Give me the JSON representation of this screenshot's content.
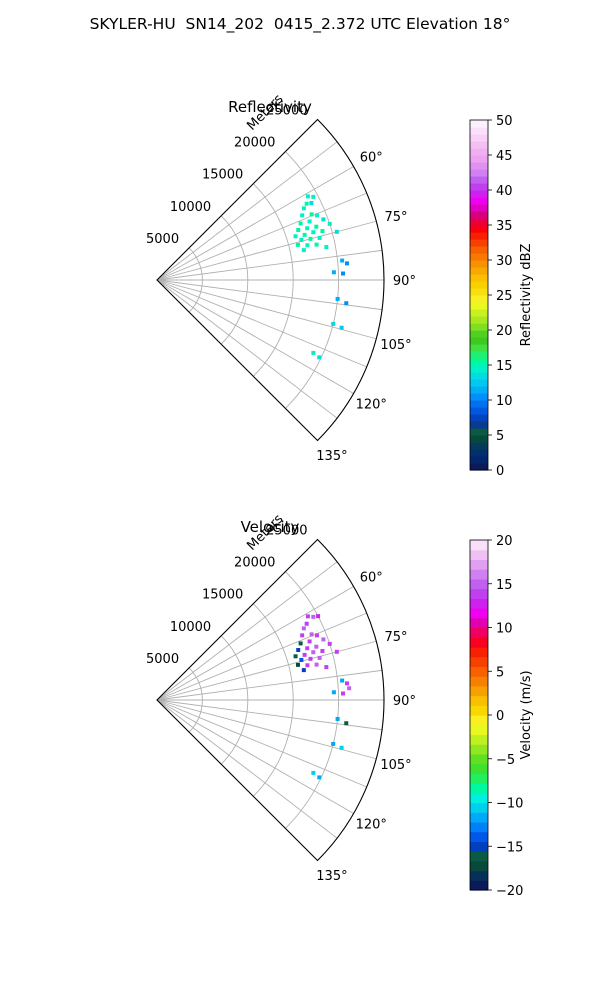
{
  "figure_title": "SKYLER-HU  SN14_202  0415_2.372 UTC Elevation 18°",
  "colors": {
    "grid": "#b0b0b0",
    "frame": "#000000",
    "reflectivity_points": "#00e8b0",
    "cyan_points": "#00d8f0",
    "magenta_points": "#c040f0",
    "blue_points": "#0050e0"
  },
  "chart_data": [
    {
      "type": "scatter",
      "title": "Reflectivity",
      "range_label": "Meters",
      "range_ticks": [
        5000,
        10000,
        15000,
        20000,
        25000
      ],
      "range_lim": [
        0,
        25000
      ],
      "azimuth_lim": [
        45,
        135
      ],
      "azimuth_ticks": [
        60,
        75,
        90,
        105,
        120,
        135
      ],
      "azimuth_tick_labels": [
        "60°",
        "75°",
        "90°",
        "105°",
        "120°",
        "135°"
      ],
      "colorbar": {
        "label": "Reflectivity dBZ",
        "min": 0,
        "max": 50,
        "ticks": [
          0,
          5,
          10,
          15,
          20,
          25,
          30,
          35,
          40,
          45,
          50
        ],
        "tick_labels": [
          "0",
          "5",
          "10",
          "15",
          "20",
          "25",
          "30",
          "35",
          "40",
          "45",
          "50"
        ],
        "colors": [
          "#0a1a5a",
          "#04246c",
          "#02306e",
          "#043a5a",
          "#064a3c",
          "#0a5a44",
          "#0a3a90",
          "#0044c0",
          "#0058e0",
          "#0070f0",
          "#0090f8",
          "#00aef8",
          "#00c8f0",
          "#00dce0",
          "#00f0c8",
          "#00f8a0",
          "#20f070",
          "#40e040",
          "#40c820",
          "#50d020",
          "#80e020",
          "#a8e820",
          "#c8f020",
          "#e8f820",
          "#f8f020",
          "#f8e010",
          "#f8d000",
          "#f8c000",
          "#f8a800",
          "#f89000",
          "#f87800",
          "#f86000",
          "#f84000",
          "#f82000",
          "#f80010",
          "#e80040",
          "#d80080",
          "#e000c0",
          "#f000f0",
          "#d020f0",
          "#c040f0",
          "#c060f0",
          "#d080f0",
          "#e090f0",
          "#f0a0f0",
          "#f0b0f0",
          "#f4c0f4",
          "#f8d0f8",
          "#fbe0fb",
          "#fdf0fd"
        ]
      },
      "points": [
        {
          "r": 19000,
          "az": 61,
          "v": 14
        },
        {
          "r": 19500,
          "az": 62,
          "v": 14
        },
        {
          "r": 18500,
          "az": 63,
          "v": 15
        },
        {
          "r": 18000,
          "az": 64,
          "v": 14
        },
        {
          "r": 19000,
          "az": 63.5,
          "v": 13
        },
        {
          "r": 17500,
          "az": 66,
          "v": 14
        },
        {
          "r": 18500,
          "az": 67,
          "v": 15
        },
        {
          "r": 19000,
          "az": 68,
          "v": 14
        },
        {
          "r": 17000,
          "az": 68.5,
          "v": 15
        },
        {
          "r": 18000,
          "az": 69,
          "v": 14
        },
        {
          "r": 19500,
          "az": 70,
          "v": 13
        },
        {
          "r": 16500,
          "az": 70.5,
          "v": 15
        },
        {
          "r": 17500,
          "az": 71,
          "v": 14
        },
        {
          "r": 18500,
          "az": 71.5,
          "v": 15
        },
        {
          "r": 20000,
          "az": 72,
          "v": 14
        },
        {
          "r": 16000,
          "az": 72.5,
          "v": 14
        },
        {
          "r": 17000,
          "az": 73,
          "v": 15
        },
        {
          "r": 18000,
          "az": 73,
          "v": 14
        },
        {
          "r": 19000,
          "az": 73.5,
          "v": 15
        },
        {
          "r": 16500,
          "az": 74.5,
          "v": 14
        },
        {
          "r": 17500,
          "az": 75,
          "v": 15
        },
        {
          "r": 18500,
          "az": 75.5,
          "v": 14
        },
        {
          "r": 20500,
          "az": 75,
          "v": 13
        },
        {
          "r": 16000,
          "az": 76,
          "v": 15
        },
        {
          "r": 17000,
          "az": 77,
          "v": 14
        },
        {
          "r": 18000,
          "az": 77.5,
          "v": 15
        },
        {
          "r": 16500,
          "az": 78.5,
          "v": 14
        },
        {
          "r": 19000,
          "az": 79,
          "v": 14
        },
        {
          "r": 20500,
          "az": 84,
          "v": 11
        },
        {
          "r": 21000,
          "az": 85,
          "v": 10
        },
        {
          "r": 19500,
          "az": 87.5,
          "v": 11
        },
        {
          "r": 20500,
          "az": 88,
          "v": 10
        },
        {
          "r": 20000,
          "az": 96,
          "v": 11
        },
        {
          "r": 21000,
          "az": 97,
          "v": 10
        },
        {
          "r": 20000,
          "az": 104,
          "v": 13
        },
        {
          "r": 21000,
          "az": 104.5,
          "v": 12
        },
        {
          "r": 19000,
          "az": 115,
          "v": 14
        },
        {
          "r": 19800,
          "az": 115.5,
          "v": 13
        }
      ]
    },
    {
      "type": "scatter",
      "title": "Velocity",
      "range_label": "Meters",
      "range_ticks": [
        5000,
        10000,
        15000,
        20000,
        25000
      ],
      "range_lim": [
        0,
        25000
      ],
      "azimuth_lim": [
        45,
        135
      ],
      "azimuth_ticks": [
        60,
        75,
        90,
        105,
        120,
        135
      ],
      "azimuth_tick_labels": [
        "60°",
        "75°",
        "90°",
        "105°",
        "120°",
        "135°"
      ],
      "colorbar": {
        "label": "Velocity (m/s)",
        "min": -20,
        "max": 20,
        "ticks": [
          -20,
          -15,
          -10,
          -5,
          0,
          5,
          10,
          15,
          20
        ],
        "tick_labels": [
          "−20",
          "−15",
          "−10",
          "−5",
          "0",
          "5",
          "10",
          "15",
          "20"
        ],
        "colors": [
          "#0a1a5a",
          "#06305a",
          "#064a3c",
          "#0a5a44",
          "#0040c0",
          "#0058e8",
          "#0080f8",
          "#00a8f8",
          "#00d0f0",
          "#00f0e0",
          "#00f8a0",
          "#20f060",
          "#40e030",
          "#60e020",
          "#90e820",
          "#c0f020",
          "#e8f820",
          "#f8f020",
          "#f8d800",
          "#f8c000",
          "#f8a000",
          "#f88000",
          "#f86000",
          "#f84000",
          "#f82000",
          "#f80020",
          "#f00060",
          "#e000b0",
          "#f000f0",
          "#d020f0",
          "#c040f0",
          "#c060f0",
          "#d080f0",
          "#e0a0f0",
          "#f0c0f4",
          "#f8e0f8"
        ]
      },
      "points": [
        {
          "r": 19000,
          "az": 61,
          "v": 14
        },
        {
          "r": 19500,
          "az": 62,
          "v": 15
        },
        {
          "r": 18500,
          "az": 63,
          "v": 14
        },
        {
          "r": 20000,
          "az": 62.5,
          "v": 13
        },
        {
          "r": 18000,
          "az": 64,
          "v": 15
        },
        {
          "r": 17500,
          "az": 66,
          "v": 14
        },
        {
          "r": 18500,
          "az": 67,
          "v": 15
        },
        {
          "r": 19000,
          "az": 68,
          "v": 14
        },
        {
          "r": 17000,
          "az": 68.5,
          "v": -16
        },
        {
          "r": 18000,
          "az": 69,
          "v": 14
        },
        {
          "r": 19500,
          "az": 70,
          "v": 15
        },
        {
          "r": 16500,
          "az": 70.5,
          "v": -15
        },
        {
          "r": 17500,
          "az": 71,
          "v": 14
        },
        {
          "r": 18500,
          "az": 71.5,
          "v": 15
        },
        {
          "r": 20000,
          "az": 72,
          "v": 14
        },
        {
          "r": 16000,
          "az": 72.5,
          "v": -16
        },
        {
          "r": 17000,
          "az": 73,
          "v": 14
        },
        {
          "r": 18000,
          "az": 73,
          "v": 15
        },
        {
          "r": 19000,
          "az": 73.5,
          "v": 14
        },
        {
          "r": 16500,
          "az": 74.5,
          "v": -14
        },
        {
          "r": 17500,
          "az": 75,
          "v": 14
        },
        {
          "r": 18500,
          "az": 75.5,
          "v": 15
        },
        {
          "r": 20500,
          "az": 75,
          "v": 14
        },
        {
          "r": 16000,
          "az": 76,
          "v": -17
        },
        {
          "r": 17000,
          "az": 77,
          "v": 14
        },
        {
          "r": 18000,
          "az": 77.5,
          "v": 15
        },
        {
          "r": 16500,
          "az": 78.5,
          "v": -15
        },
        {
          "r": 19000,
          "az": 79,
          "v": 14
        },
        {
          "r": 20500,
          "az": 84,
          "v": -12
        },
        {
          "r": 21000,
          "az": 85,
          "v": 14
        },
        {
          "r": 21200,
          "az": 86.5,
          "v": 15
        },
        {
          "r": 19500,
          "az": 87.5,
          "v": -12
        },
        {
          "r": 20500,
          "az": 88,
          "v": 14
        },
        {
          "r": 20000,
          "az": 96,
          "v": -12
        },
        {
          "r": 21000,
          "az": 97,
          "v": -16
        },
        {
          "r": 20000,
          "az": 104,
          "v": -12
        },
        {
          "r": 21000,
          "az": 104.5,
          "v": -11
        },
        {
          "r": 19000,
          "az": 115,
          "v": -11
        },
        {
          "r": 19800,
          "az": 115.5,
          "v": -12
        }
      ]
    }
  ]
}
